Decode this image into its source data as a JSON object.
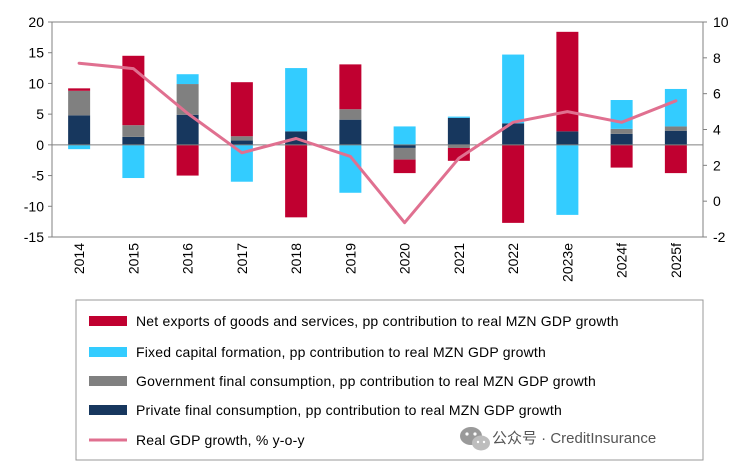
{
  "chart_data": {
    "type": "bar",
    "stacked": true,
    "categories": [
      "2014",
      "2015",
      "2016",
      "2017",
      "2018",
      "2019",
      "2020",
      "2021",
      "2022",
      "2023e",
      "2024f",
      "2025f"
    ],
    "series": [
      {
        "name": "Private final consumption, pp contribution to real MZN GDP growth",
        "kind": "bar",
        "axis": "left",
        "color": "#17375e",
        "values": [
          4.8,
          1.3,
          4.9,
          0.7,
          2.2,
          4.1,
          -0.5,
          4.4,
          3.5,
          2.2,
          1.8,
          2.3
        ]
      },
      {
        "name": "Government final consumption, pp contribution to real MZN GDP growth",
        "kind": "bar",
        "axis": "left",
        "color": "#808080",
        "values": [
          4.0,
          1.9,
          5.0,
          0.7,
          0.0,
          1.7,
          -1.9,
          -0.5,
          0.0,
          0.0,
          0.8,
          0.7
        ]
      },
      {
        "name": "Fixed capital formation, pp contribution to real MZN GDP growth",
        "kind": "bar",
        "axis": "left",
        "color": "#33ccff",
        "values": [
          -0.7,
          -5.4,
          1.6,
          -6.0,
          10.3,
          -7.8,
          3.0,
          0.2,
          11.2,
          -11.4,
          4.7,
          6.1
        ]
      },
      {
        "name": "Net exports of goods and services, pp contribution to real MZN GDP growth",
        "kind": "bar",
        "axis": "left",
        "color": "#c00030",
        "values": [
          0.4,
          11.3,
          -5.0,
          8.8,
          -11.8,
          7.3,
          -2.2,
          -2.1,
          -12.7,
          16.2,
          -3.7,
          -4.6
        ]
      },
      {
        "name": "Real GDP growth, % y-o-y",
        "kind": "line",
        "axis": "right",
        "color": "#e07090",
        "values": [
          7.7,
          7.4,
          4.9,
          2.7,
          3.5,
          2.5,
          -1.2,
          2.4,
          4.4,
          5.0,
          4.4,
          5.6
        ]
      }
    ],
    "ylim": [
      -15,
      20
    ],
    "yticks": [
      -15,
      -10,
      -5,
      0,
      5,
      10,
      15,
      20
    ],
    "y2lim": [
      -2,
      10
    ],
    "y2ticks": [
      -2,
      0,
      2,
      4,
      6,
      8,
      10
    ],
    "legend_order": [
      3,
      2,
      1,
      0,
      4
    ],
    "legend_placement": "bottom",
    "grid": false
  },
  "watermark": {
    "icon": "wechat-icon",
    "text": "公众号 · CreditInsurance"
  }
}
